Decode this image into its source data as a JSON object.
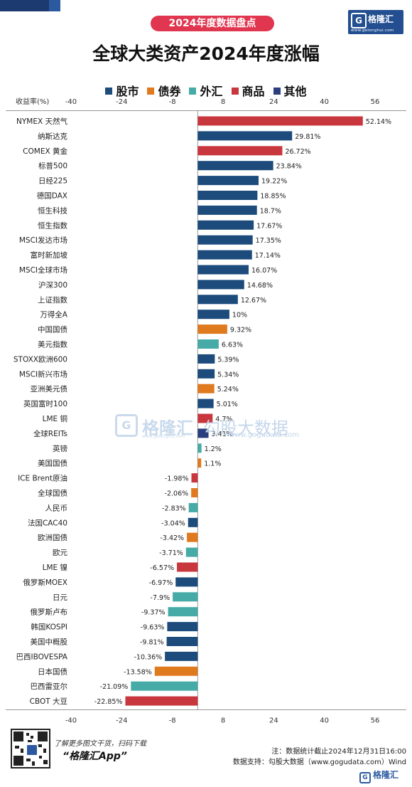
{
  "badge_text": "2024年度数据盘点",
  "logo": {
    "name": "格隆汇",
    "url": "www.gelonghui.com"
  },
  "watermark": {
    "brand": "格隆汇",
    "url": "www.gelonghui.com",
    "brand2": "勾股大数据",
    "url2": "www.gogudata.com"
  },
  "footer": {
    "line1": "了解更多图文干货，扫码下载",
    "app": "“格隆汇App”",
    "note": "注：数据统计截止2024年12月31日16:00",
    "source": "数据支持：勾股大数据（www.gogudata.com）Wind"
  },
  "bottom_logo": "格隆汇",
  "colors": {
    "股市": "#1c4b7c",
    "债券": "#e07a1f",
    "外汇": "#46aaa6",
    "商品": "#c9373e",
    "其他": "#2b3f7e"
  },
  "chart_data": {
    "type": "bar",
    "orientation": "horizontal",
    "title": "全球大类资产2024年度涨幅",
    "ylabel": "收益率(%)",
    "xlim": [
      -40,
      56
    ],
    "ticks": [
      -40,
      -24,
      -8,
      8,
      24,
      40,
      56
    ],
    "legend": [
      "股市",
      "债券",
      "外汇",
      "商品",
      "其他"
    ],
    "legend_position": "top",
    "categories": [
      "NYMEX 天然气",
      "纳斯达克",
      "COMEX 黄金",
      "标普500",
      "日经225",
      "德国DAX",
      "恒生科技",
      "恒生指数",
      "MSCI发达市场",
      "富时新加坡",
      "MSCI全球市场",
      "沪深300",
      "上证指数",
      "万得全A",
      "中国国债",
      "美元指数",
      "STOXX欧洲600",
      "MSCI新兴市场",
      "亚洲美元债",
      "英国富时100",
      "LME 铜",
      "全球REITs",
      "英镑",
      "美国国债",
      "ICE Brent原油",
      "全球国债",
      "人民币",
      "法国CAC40",
      "欧洲国债",
      "欧元",
      "LME 镍",
      "俄罗斯MOEX",
      "日元",
      "俄罗斯卢布",
      "韩国KOSPI",
      "美国中概股",
      "巴西IBOVESPA",
      "日本国债",
      "巴西雷亚尔",
      "CBOT 大豆"
    ],
    "values": [
      52.14,
      29.81,
      26.72,
      23.84,
      19.22,
      18.85,
      18.7,
      17.67,
      17.35,
      17.14,
      16.07,
      14.68,
      12.67,
      10,
      9.32,
      6.63,
      5.39,
      5.34,
      5.24,
      5.01,
      4.7,
      3.41,
      1.2,
      1.1,
      -1.98,
      -2.06,
      -2.83,
      -3.04,
      -3.42,
      -3.71,
      -6.57,
      -6.97,
      -7.9,
      -9.37,
      -9.63,
      -9.81,
      -10.36,
      -13.58,
      -21.09,
      -22.85
    ],
    "value_labels": [
      "52.14%",
      "29.81%",
      "26.72%",
      "23.84%",
      "19.22%",
      "18.85%",
      "18.7%",
      "17.67%",
      "17.35%",
      "17.14%",
      "16.07%",
      "14.68%",
      "12.67%",
      "10%",
      "9.32%",
      "6.63%",
      "5.39%",
      "5.34%",
      "5.24%",
      "5.01%",
      "4.7%",
      "3.41%",
      "1.2%",
      "1.1%",
      "-1.98%",
      "-2.06%",
      "-2.83%",
      "-3.04%",
      "-3.42%",
      "-3.71%",
      "-6.57%",
      "-6.97%",
      "-7.9%",
      "-9.37%",
      "-9.63%",
      "-9.81%",
      "-10.36%",
      "-13.58%",
      "-21.09%",
      "-22.85%"
    ],
    "groups": [
      "商品",
      "股市",
      "商品",
      "股市",
      "股市",
      "股市",
      "股市",
      "股市",
      "股市",
      "股市",
      "股市",
      "股市",
      "股市",
      "股市",
      "债券",
      "外汇",
      "股市",
      "股市",
      "债券",
      "股市",
      "商品",
      "其他",
      "外汇",
      "债券",
      "商品",
      "债券",
      "外汇",
      "股市",
      "债券",
      "外汇",
      "商品",
      "股市",
      "外汇",
      "外汇",
      "股市",
      "股市",
      "股市",
      "债券",
      "外汇",
      "商品"
    ]
  }
}
